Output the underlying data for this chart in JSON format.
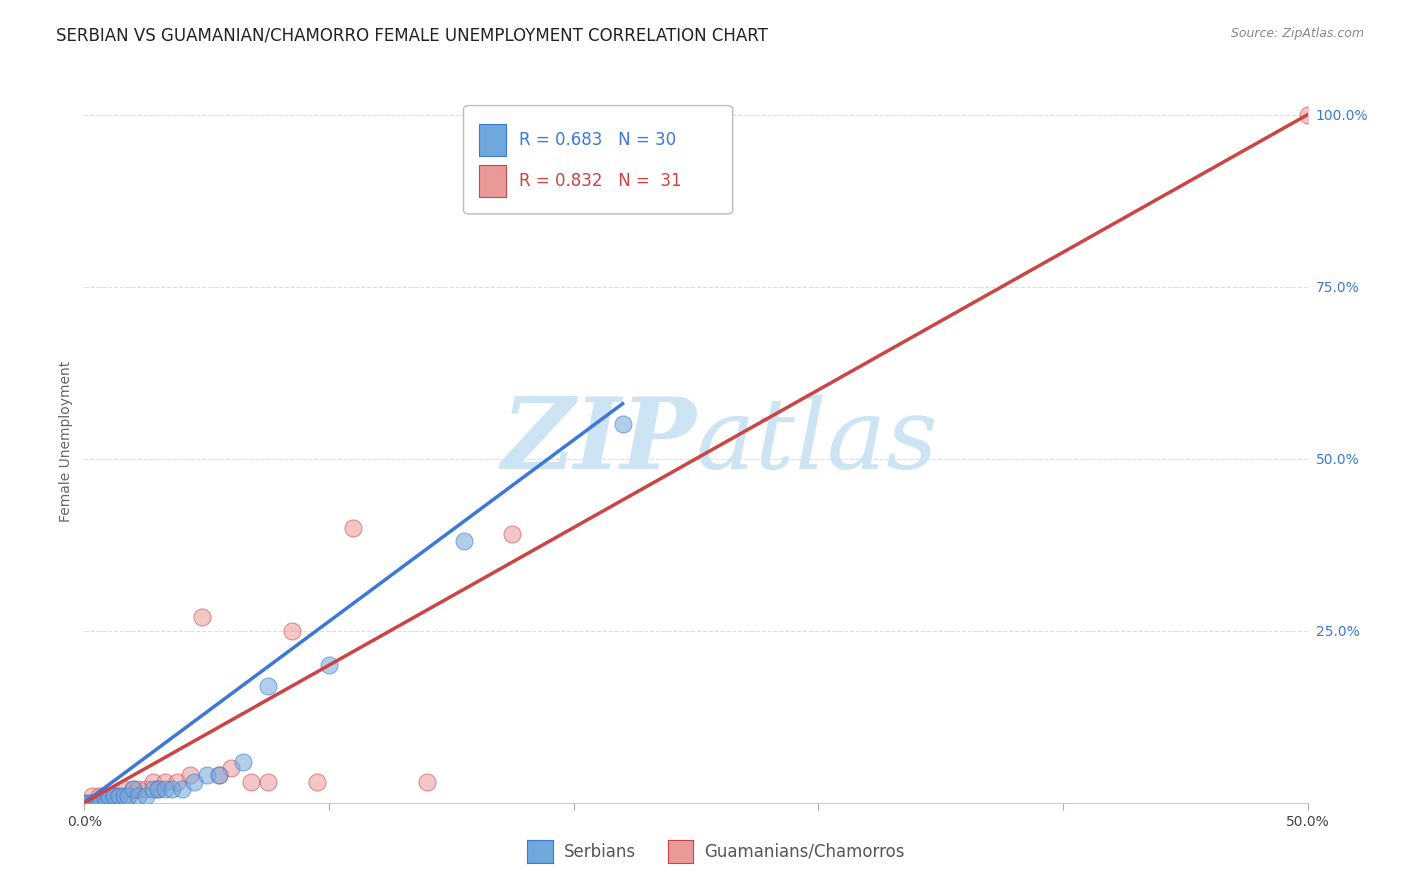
{
  "title": "SERBIAN VS GUAMANIAN/CHAMORRO FEMALE UNEMPLOYMENT CORRELATION CHART",
  "source": "Source: ZipAtlas.com",
  "ylabel": "Female Unemployment",
  "xlim": [
    0.0,
    0.5
  ],
  "ylim": [
    0.0,
    1.05
  ],
  "x_ticks": [
    0.0,
    0.1,
    0.2,
    0.3,
    0.4,
    0.5
  ],
  "x_tick_labels": [
    "0.0%",
    "",
    "",
    "",
    "",
    "50.0%"
  ],
  "y_ticks_right": [
    0.0,
    0.25,
    0.5,
    0.75,
    1.0
  ],
  "y_tick_labels_right": [
    "",
    "25.0%",
    "50.0%",
    "75.0%",
    "100.0%"
  ],
  "serbian_R": 0.683,
  "serbian_N": 30,
  "guam_R": 0.832,
  "guam_N": 31,
  "serbian_color": "#6fa8dc",
  "guam_color": "#ea9999",
  "serbian_line_color": "#3c78d8",
  "guam_line_color": "#cc4444",
  "ref_line_color": "#b8b8b8",
  "background_color": "#ffffff",
  "grid_color": "#dddddd",
  "watermark_color": "#cde4f5",
  "serbian_x": [
    0.0,
    0.002,
    0.003,
    0.004,
    0.005,
    0.006,
    0.007,
    0.008,
    0.009,
    0.01,
    0.012,
    0.014,
    0.016,
    0.018,
    0.02,
    0.022,
    0.025,
    0.028,
    0.03,
    0.033,
    0.036,
    0.04,
    0.045,
    0.05,
    0.055,
    0.065,
    0.075,
    0.1,
    0.155,
    0.22
  ],
  "serbian_y": [
    0.0,
    0.0,
    0.0,
    0.0,
    0.0,
    0.0,
    0.0,
    0.01,
    0.0,
    0.01,
    0.01,
    0.01,
    0.01,
    0.01,
    0.02,
    0.01,
    0.01,
    0.02,
    0.02,
    0.02,
    0.02,
    0.02,
    0.03,
    0.04,
    0.04,
    0.06,
    0.17,
    0.2,
    0.38,
    0.55
  ],
  "guam_x": [
    0.0,
    0.002,
    0.003,
    0.004,
    0.005,
    0.006,
    0.008,
    0.01,
    0.012,
    0.014,
    0.016,
    0.018,
    0.02,
    0.022,
    0.025,
    0.028,
    0.03,
    0.033,
    0.038,
    0.043,
    0.048,
    0.055,
    0.06,
    0.068,
    0.075,
    0.085,
    0.095,
    0.11,
    0.14,
    0.175,
    0.5
  ],
  "guam_y": [
    0.0,
    0.0,
    0.01,
    0.0,
    0.0,
    0.01,
    0.01,
    0.01,
    0.01,
    0.01,
    0.02,
    0.01,
    0.02,
    0.02,
    0.02,
    0.03,
    0.02,
    0.03,
    0.03,
    0.04,
    0.27,
    0.04,
    0.05,
    0.03,
    0.03,
    0.25,
    0.03,
    0.4,
    0.03,
    0.39,
    1.0
  ],
  "serbian_line_x0": 0.0,
  "serbian_line_y0": 0.0,
  "serbian_line_x1": 0.22,
  "serbian_line_y1": 0.58,
  "guam_line_x0": 0.0,
  "guam_line_y0": 0.0,
  "guam_line_x1": 0.5,
  "guam_line_y1": 1.0,
  "title_fontsize": 12,
  "label_fontsize": 10,
  "tick_fontsize": 10,
  "legend_fontsize": 12
}
